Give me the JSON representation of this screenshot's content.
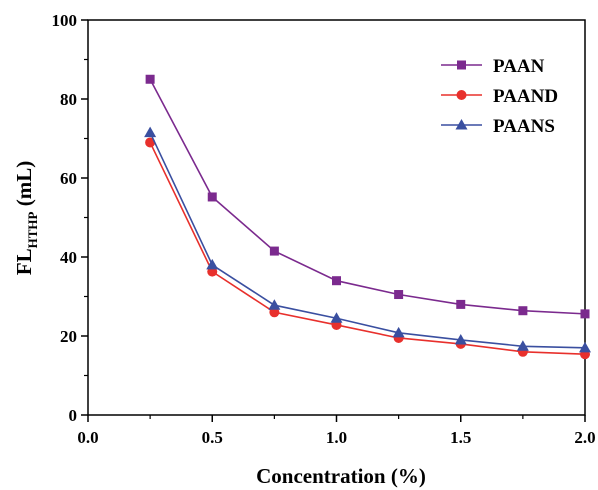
{
  "chart_data": {
    "type": "line",
    "x": [
      0.25,
      0.5,
      0.75,
      1.0,
      1.25,
      1.5,
      1.75,
      2.0
    ],
    "series": [
      {
        "name": "PAAN",
        "color": "#7B2A8E",
        "marker": "square",
        "values": [
          85.0,
          55.2,
          41.5,
          34.0,
          30.5,
          28.0,
          26.4,
          25.6
        ]
      },
      {
        "name": "PAAND",
        "color": "#E8302C",
        "marker": "circle",
        "values": [
          69.0,
          36.3,
          26.0,
          22.8,
          19.5,
          18.0,
          16.0,
          15.4
        ]
      },
      {
        "name": "PAANS",
        "color": "#3A4FA0",
        "marker": "triangle",
        "values": [
          71.5,
          38.0,
          27.8,
          24.5,
          20.8,
          19.0,
          17.4,
          17.0
        ]
      }
    ],
    "xlabel": "Concentration (%)",
    "ylabel_main": "FL",
    "ylabel_sub": "HTHP",
    "ylabel_unit": " (mL)",
    "xlim": [
      0.0,
      2.0
    ],
    "ylim": [
      0,
      100
    ],
    "xticks": [
      0.0,
      0.5,
      1.0,
      1.5,
      2.0
    ],
    "xtick_labels": [
      "0.0",
      "0.5",
      "1.0",
      "1.5",
      "2.0"
    ],
    "yticks": [
      0,
      20,
      40,
      60,
      80,
      100
    ],
    "ytick_labels": [
      "0",
      "20",
      "40",
      "60",
      "80",
      "100"
    ],
    "grid": false,
    "legend_position": "top-right"
  }
}
